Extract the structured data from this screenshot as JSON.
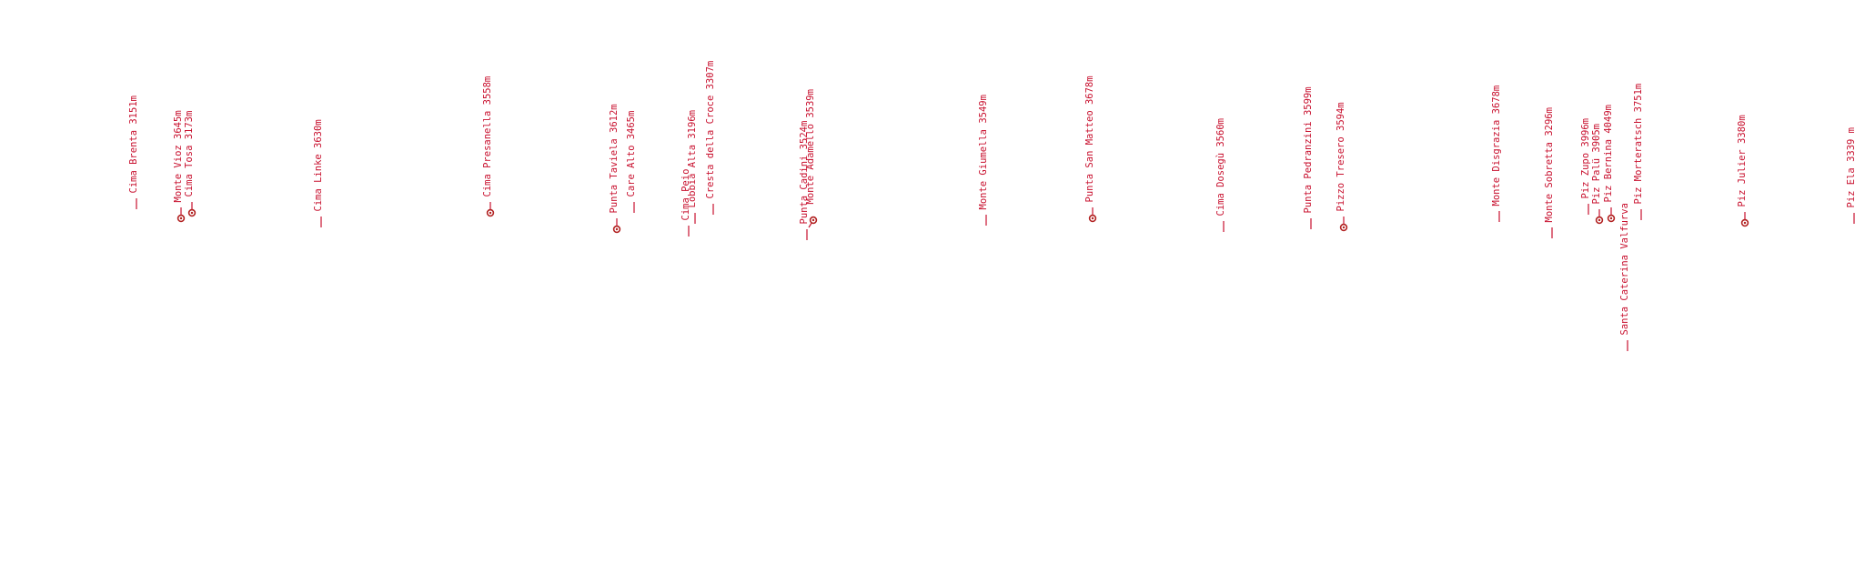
{
  "colors": {
    "label": "#c8102e",
    "marker": "#b22222"
  },
  "peaks": [
    {
      "name": "Cima Brenta 3151m",
      "marker": false
    },
    {
      "name": "Monte Vioz 3645m",
      "marker": true
    },
    {
      "name": "Cima Tosa 3173m",
      "marker": true
    },
    {
      "name": "Cima Linke 3630m",
      "marker": false
    },
    {
      "name": "Cima Presanella 3558m",
      "marker": true
    },
    {
      "name": "Punta Taviela 3612m",
      "marker": true
    },
    {
      "name": "Care Alto 3465m",
      "marker": false
    },
    {
      "name": "Cima Peio",
      "marker": false
    },
    {
      "name": "Lobbia Alta 3196m",
      "marker": false
    },
    {
      "name": "Cresta della Croce 3307m",
      "marker": false
    },
    {
      "name": "Punta Cadini 3524m",
      "marker": false
    },
    {
      "name": "Monte Adamello 3539m",
      "marker": true
    },
    {
      "name": "Monte Giumella 3549m",
      "marker": false
    },
    {
      "name": "Punta San Matteo 3678m",
      "marker": true
    },
    {
      "name": "Cima Dosegù 3560m",
      "marker": false
    },
    {
      "name": "Punta Pedranzini 3599m",
      "marker": false
    },
    {
      "name": "Pizzo Tresero 3594m",
      "marker": true
    },
    {
      "name": "Monte Disgrazia 3678m",
      "marker": false
    },
    {
      "name": "Monte Sobretta 3296m",
      "marker": false
    },
    {
      "name": "Piz Zupo 3996m",
      "marker": false
    },
    {
      "name": "Piz Palü 3905m",
      "marker": true
    },
    {
      "name": "Piz Bernina 4049m",
      "marker": true
    },
    {
      "name": "Santa Caterina Valfurva",
      "marker": false
    },
    {
      "name": "Piz Morteratsch 3751m",
      "marker": false
    },
    {
      "name": "Piz Julier 3380m",
      "marker": true
    },
    {
      "name": "Piz Ela 3339 m",
      "marker": false
    }
  ]
}
